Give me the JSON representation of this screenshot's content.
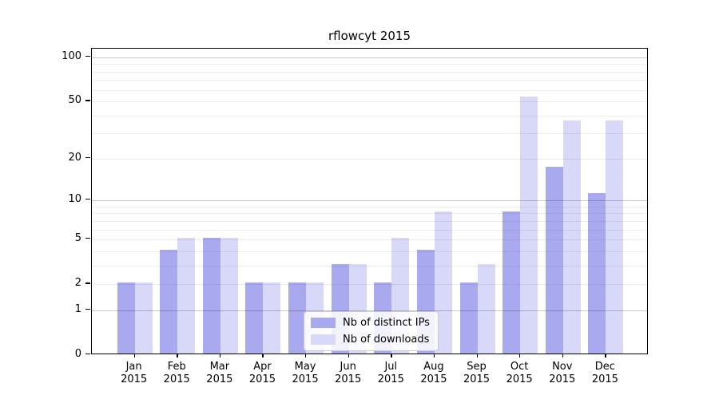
{
  "title": "rflowcyt 2015",
  "legend": {
    "items": [
      {
        "label": "Nb of distinct IPs",
        "color": "#a9a9f0"
      },
      {
        "label": "Nb of downloads",
        "color": "#d8d8f8"
      }
    ]
  },
  "chart_data": {
    "type": "bar",
    "title": "rflowcyt 2015",
    "categories": [
      "Jan 2015",
      "Feb 2015",
      "Mar 2015",
      "Apr 2015",
      "May 2015",
      "Jun 2015",
      "Jul 2015",
      "Aug 2015",
      "Sep 2015",
      "Oct 2015",
      "Nov 2015",
      "Dec 2015"
    ],
    "series": [
      {
        "name": "Nb of distinct IPs",
        "color": "#a9a9f0",
        "values": [
          2,
          4,
          5,
          2,
          2,
          3,
          2,
          4,
          2,
          8,
          17,
          11
        ]
      },
      {
        "name": "Nb of downloads",
        "color": "#d8d8f8",
        "values": [
          2,
          5,
          5,
          2,
          2,
          3,
          5,
          8,
          3,
          53,
          36,
          36
        ]
      }
    ],
    "xlabel": "",
    "ylabel": "",
    "y_scale": "log(1+x)",
    "y_ticks_labeled": [
      0,
      1,
      2,
      5,
      10,
      20,
      50,
      100
    ],
    "y_gridlines_major": [
      1,
      10,
      100
    ],
    "y_gridlines_minor": [
      2,
      3,
      4,
      5,
      6,
      7,
      8,
      9,
      20,
      30,
      40,
      50,
      60,
      70,
      80,
      90
    ],
    "ylim": [
      0,
      113
    ],
    "grid": true,
    "legend_position": "lower center"
  }
}
